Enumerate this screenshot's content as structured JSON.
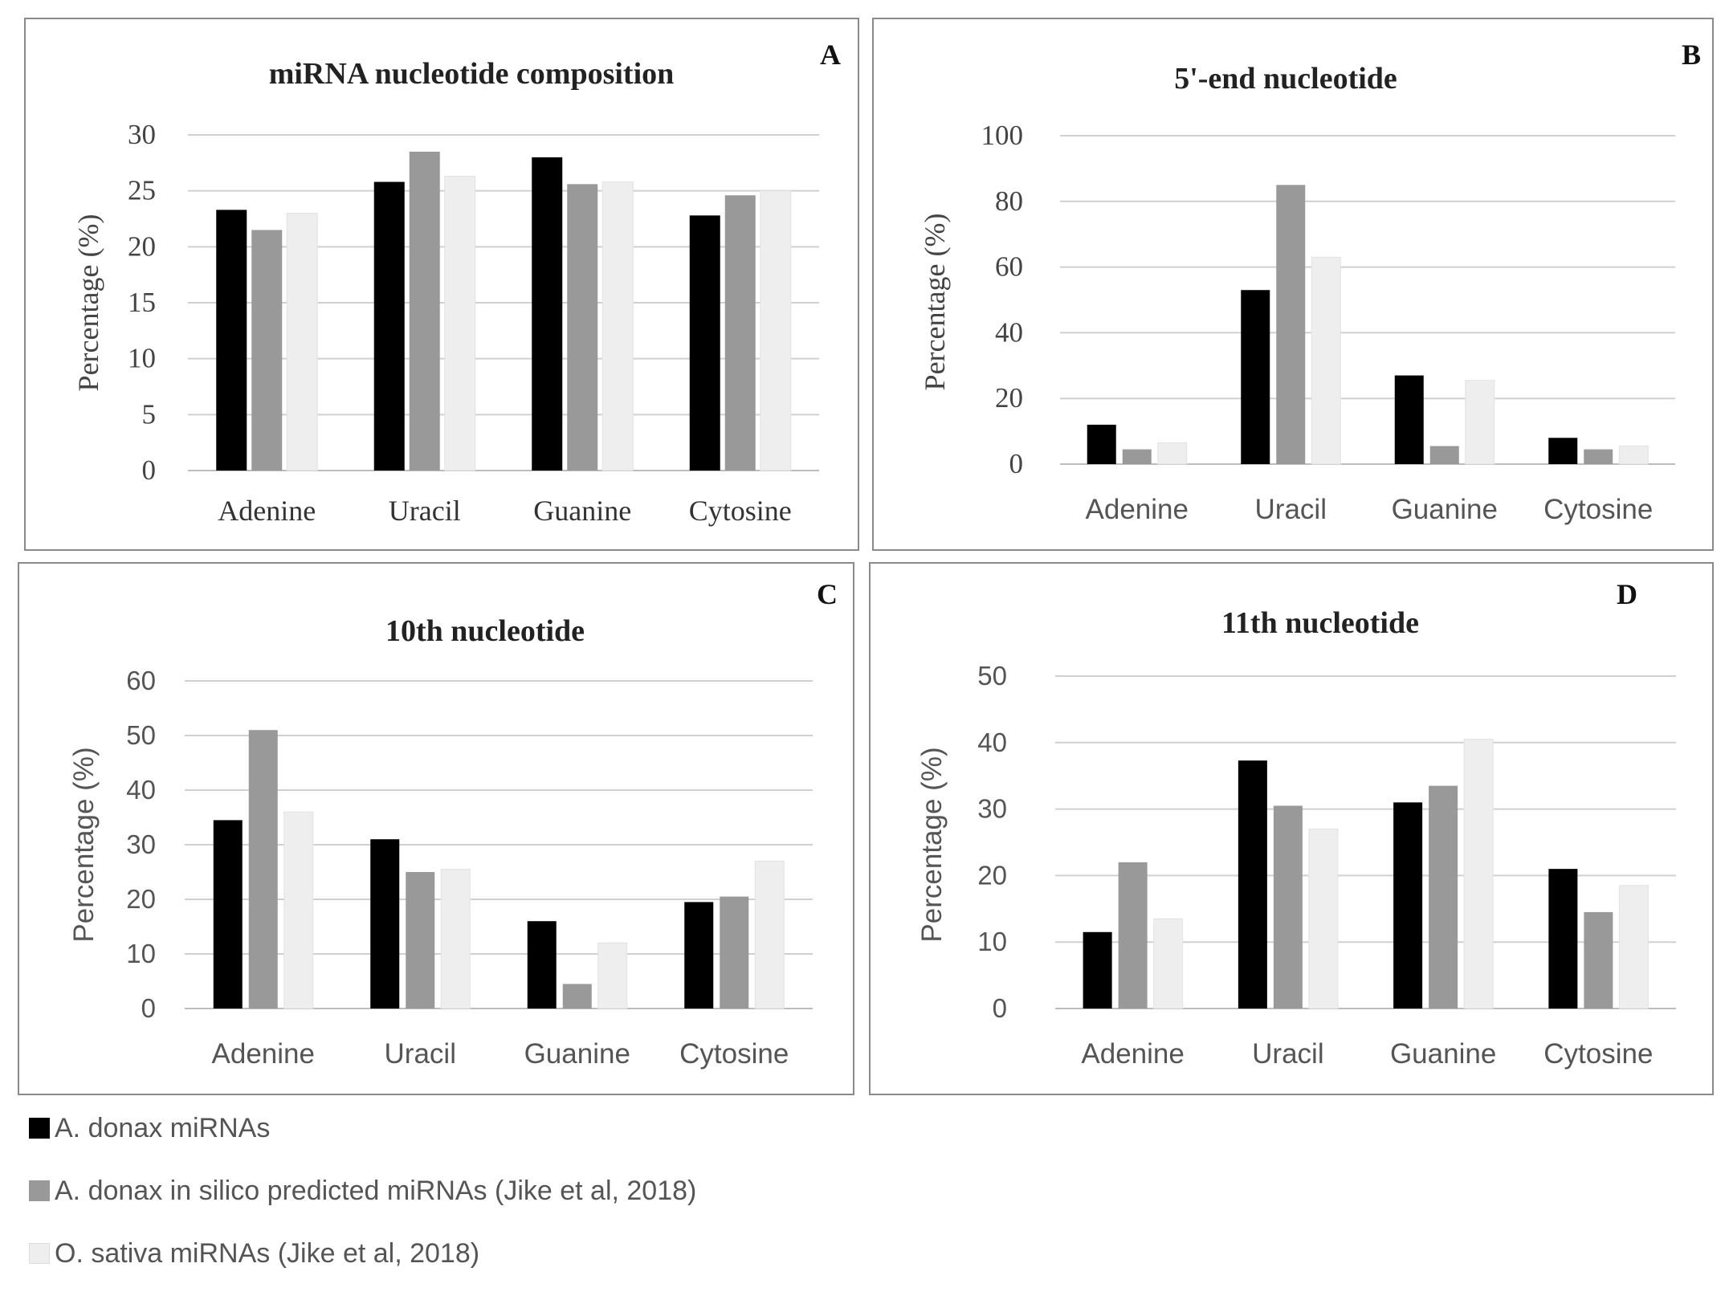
{
  "chart_data": [
    {
      "type": "bar",
      "panel": "A",
      "title": "miRNA  nucleotide  composition",
      "categories": [
        "Adenine",
        "Uracil",
        "Guanine",
        "Cytosine"
      ],
      "ylabel": "Percentage  (%)",
      "xlabel": "",
      "ylim": [
        0,
        30
      ],
      "yticks": [
        "0",
        "5",
        "10",
        "15",
        "20",
        "25",
        "30"
      ],
      "series": [
        {
          "name": "A. donax miRNAs",
          "values": [
            23.3,
            25.8,
            28.0,
            22.8
          ]
        },
        {
          "name": "A. donax in silico predicted miRNAs (Jike et al, 2018)",
          "values": [
            21.5,
            28.5,
            25.6,
            24.6
          ]
        },
        {
          "name": "O. sativa miRNAs (Jike et al, 2018)",
          "values": [
            23.0,
            26.3,
            25.8,
            25.0
          ]
        }
      ]
    },
    {
      "type": "bar",
      "panel": "B",
      "title": "5'-end nucleotide",
      "categories": [
        "Adenine",
        "Uracil",
        "Guanine",
        "Cytosine"
      ],
      "ylabel": "Percentage (%)",
      "xlabel": "",
      "ylim": [
        0,
        100
      ],
      "yticks": [
        "0",
        "20",
        "40",
        "60",
        "80",
        "100"
      ],
      "series": [
        {
          "name": "A. donax miRNAs",
          "values": [
            12,
            53,
            27,
            8
          ]
        },
        {
          "name": "A. donax in silico predicted miRNAs (Jike et al, 2018)",
          "values": [
            4.5,
            85,
            5.5,
            4.5
          ]
        },
        {
          "name": "O. sativa miRNAs (Jike et al, 2018)",
          "values": [
            6.5,
            63,
            25.5,
            5.5
          ]
        }
      ]
    },
    {
      "type": "bar",
      "panel": "C",
      "title": "10th nucleotide",
      "categories": [
        "Adenine",
        "Uracil",
        "Guanine",
        "Cytosine"
      ],
      "ylabel": "Percentage (%)",
      "xlabel": "",
      "ylim": [
        0,
        60
      ],
      "yticks": [
        "0",
        "10",
        "20",
        "30",
        "40",
        "50",
        "60"
      ],
      "series": [
        {
          "name": "A. donax miRNAs",
          "values": [
            34.5,
            31,
            16,
            19.5
          ]
        },
        {
          "name": "A. donax in silico predicted miRNAs (Jike et al, 2018)",
          "values": [
            51,
            25,
            4.5,
            20.5
          ]
        },
        {
          "name": "O. sativa miRNAs (Jike et al, 2018)",
          "values": [
            36,
            25.5,
            12,
            27
          ]
        }
      ]
    },
    {
      "type": "bar",
      "panel": "D",
      "title": "11th nucleotide",
      "categories": [
        "Adenine",
        "Uracil",
        "Guanine",
        "Cytosine"
      ],
      "ylabel": "Percentage (%)",
      "xlabel": "",
      "ylim": [
        0,
        50
      ],
      "yticks": [
        "0",
        "10",
        "20",
        "30",
        "40",
        "50"
      ],
      "series": [
        {
          "name": "A. donax miRNAs",
          "values": [
            11.5,
            37.3,
            31,
            21
          ]
        },
        {
          "name": "A. donax in silico predicted miRNAs (Jike et al, 2018)",
          "values": [
            22,
            30.5,
            33.5,
            14.5
          ]
        },
        {
          "name": "O. sativa miRNAs (Jike et al, 2018)",
          "values": [
            13.5,
            27,
            40.5,
            18.5
          ]
        }
      ]
    }
  ],
  "series_colors": [
    "#000000",
    "#999999",
    "#eeeeee"
  ],
  "legend": [
    {
      "label": "A. donax miRNAs"
    },
    {
      "label": "A. donax in silico predicted miRNAs (Jike et al, 2018)"
    },
    {
      "label": "O. sativa miRNAs (Jike et al, 2018)"
    }
  ]
}
